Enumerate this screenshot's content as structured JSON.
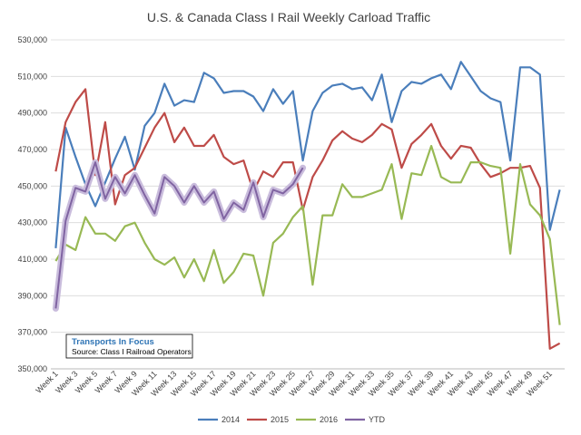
{
  "chart_data": {
    "type": "line",
    "title": "U.S. & Canada Class I Rail Weekly Carload Traffic",
    "ylim": [
      350000,
      530000
    ],
    "yticks": [
      350000,
      370000,
      390000,
      410000,
      430000,
      450000,
      470000,
      490000,
      510000,
      530000
    ],
    "ytick_labels": [
      "350,000",
      "370,000",
      "390,000",
      "410,000",
      "430,000",
      "450,000",
      "470,000",
      "490,000",
      "510,000",
      "530,000"
    ],
    "xtick_labels": [
      "Week 1",
      "Week 3",
      "Week 5",
      "Week 7",
      "Week 9",
      "Week 11",
      "Week 13",
      "Week 15",
      "Week 17",
      "Week 19",
      "Week 21",
      "Week 23",
      "Week 25",
      "Week 27",
      "Week 29",
      "Week 31",
      "Week 33",
      "Week 35",
      "Week 37",
      "Week 39",
      "Week 41",
      "Week 43",
      "Week 45",
      "Week 47",
      "Week 49",
      "Week 51"
    ],
    "legend_position": "bottom",
    "gridlines": true,
    "annotation": {
      "title": "Transports In Focus",
      "subtitle": "Source: Class I Railroad Operators"
    },
    "series": [
      {
        "name": "2014",
        "color": "#4a7ebb",
        "values": [
          416000,
          482000,
          466000,
          451000,
          439000,
          452000,
          465000,
          477000,
          459000,
          483000,
          490000,
          506000,
          494000,
          497000,
          496000,
          512000,
          509000,
          501000,
          502000,
          502000,
          499000,
          491000,
          503000,
          495000,
          502000,
          464000,
          491000,
          501000,
          505000,
          506000,
          503000,
          504000,
          497000,
          511000,
          485000,
          502000,
          507000,
          506000,
          509000,
          511000,
          503000,
          518000,
          510000,
          502000,
          498000,
          496000,
          464000,
          515000,
          515000,
          511000,
          426000,
          448000
        ]
      },
      {
        "name": "2015",
        "color": "#be4b48",
        "values": [
          458000,
          485000,
          496000,
          503000,
          456000,
          485000,
          440000,
          456000,
          460000,
          471000,
          482000,
          490000,
          474000,
          482000,
          472000,
          472000,
          478000,
          466000,
          462000,
          464000,
          447000,
          458000,
          455000,
          463000,
          463000,
          437000,
          455000,
          464000,
          475000,
          480000,
          476000,
          474000,
          478000,
          484000,
          481000,
          460000,
          473000,
          478000,
          484000,
          472000,
          465000,
          472000,
          471000,
          462000,
          455000,
          457000,
          460000,
          460000,
          461000,
          449000,
          361000,
          364000
        ]
      },
      {
        "name": "2016",
        "color": "#98b954",
        "values": [
          409000,
          418000,
          415000,
          433000,
          424000,
          424000,
          420000,
          428000,
          430000,
          419000,
          410000,
          407000,
          411000,
          400000,
          410000,
          398000,
          415000,
          397000,
          403000,
          413000,
          412000,
          390000,
          419000,
          424000,
          433000,
          439000,
          396000,
          434000,
          434000,
          451000,
          444000,
          444000,
          446000,
          448000,
          462000,
          432000,
          457000,
          456000,
          472000,
          455000,
          452000,
          452000,
          463000,
          463000,
          461000,
          460000,
          413000,
          462000,
          440000,
          434000,
          421000,
          374000
        ]
      },
      {
        "name": "YTD",
        "color": "#8064a2",
        "values": [
          383000,
          431000,
          449000,
          447000,
          463000,
          443000,
          455000,
          446000,
          456000,
          445000,
          435000,
          455000,
          450000,
          441000,
          450000,
          441000,
          447000,
          432000,
          441000,
          437000,
          452000,
          433000,
          448000,
          446000,
          451000,
          460000
        ]
      }
    ]
  }
}
